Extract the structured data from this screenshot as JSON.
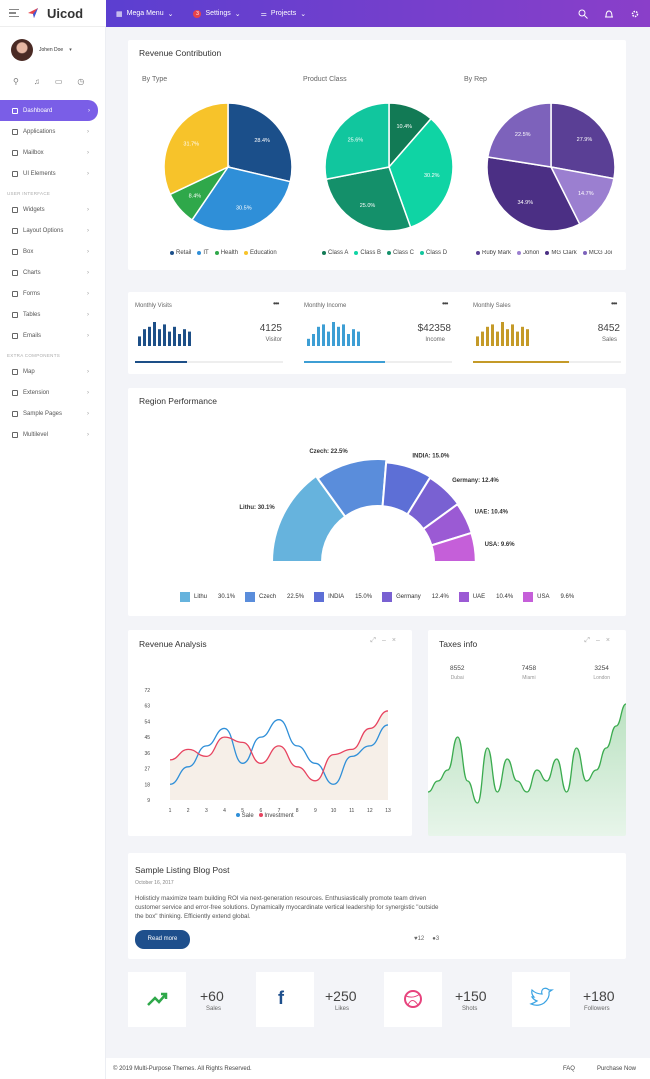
{
  "brand": {
    "name": "Uicod"
  },
  "topnav": {
    "mega": "Mega Menu",
    "settings": "Settings",
    "settings_badge": "3",
    "projects": "Projects"
  },
  "user": {
    "name": "Johen Doe"
  },
  "sidebar": {
    "items": [
      {
        "label": "Dashboard",
        "active": true
      },
      {
        "label": "Applications"
      },
      {
        "label": "Mailbox"
      },
      {
        "label": "UI Elements"
      }
    ],
    "section1": "USER INTERFACE",
    "items2": [
      {
        "label": "Widgets"
      },
      {
        "label": "Layout Options"
      },
      {
        "label": "Box"
      },
      {
        "label": "Charts"
      },
      {
        "label": "Forms"
      },
      {
        "label": "Tables"
      },
      {
        "label": "Emails"
      }
    ],
    "section2": "EXTRA COMPONENTS",
    "items3": [
      {
        "label": "Map"
      },
      {
        "label": "Extension"
      },
      {
        "label": "Sample Pages"
      },
      {
        "label": "Multilevel"
      }
    ]
  },
  "revenue": {
    "title": "Revenue Contribution",
    "by_type": "By Type",
    "product_class": "Product Class",
    "by_rep": "By Rep"
  },
  "chart_data": [
    {
      "type": "pie",
      "title": "By Type",
      "categories": [
        "Retail",
        "IT",
        "Health",
        "Education"
      ],
      "values": [
        28.4,
        30.5,
        8.4,
        31.7
      ],
      "colors": [
        "#1b4f8a",
        "#2f8fd8",
        "#2fa84a",
        "#f7c32a"
      ]
    },
    {
      "type": "pie",
      "title": "Product Class",
      "categories": [
        "Class A",
        "Class B",
        "Class C",
        "Class D"
      ],
      "values": [
        10.4,
        30.2,
        25.0,
        25.6
      ],
      "colors": [
        "#127a55",
        "#0fd4a4",
        "#14906a",
        "#11c69e"
      ]
    },
    {
      "type": "pie",
      "title": "By Rep",
      "categories": [
        "Ruby Mark",
        "Johon",
        "MG Clark",
        "MCG Joi"
      ],
      "values": [
        27.9,
        14.7,
        34.9,
        22.5
      ],
      "colors": [
        "#5a3f95",
        "#9b7fd0",
        "#4b2f84",
        "#7d62bb"
      ]
    },
    {
      "type": "bar",
      "title": "Monthly Visits",
      "values": [
        4,
        7,
        8,
        10,
        7,
        9,
        6,
        8,
        5,
        7,
        6
      ]
    },
    {
      "type": "bar",
      "title": "Monthly Income",
      "values": [
        3,
        5,
        8,
        9,
        6,
        10,
        8,
        9,
        5,
        7,
        6
      ]
    },
    {
      "type": "bar",
      "title": "Monthly Sales",
      "values": [
        4,
        6,
        8,
        9,
        6,
        10,
        7,
        9,
        6,
        8,
        7
      ]
    },
    {
      "type": "pie",
      "title": "Region Performance",
      "categories": [
        "Lithu",
        "Czech",
        "INDIA",
        "Germany",
        "UAE",
        "USA"
      ],
      "values": [
        30.1,
        22.5,
        15.0,
        12.4,
        10.4,
        9.6
      ],
      "colors": [
        "#66b3dd",
        "#5a8ddb",
        "#5d6fd6",
        "#7961d2",
        "#9b5ad4",
        "#c55fd9"
      ]
    },
    {
      "type": "line",
      "title": "Revenue Analysis",
      "x": [
        1,
        2,
        3,
        4,
        5,
        6,
        7,
        8,
        9,
        10,
        11,
        12,
        13
      ],
      "ylim": [
        9,
        72
      ],
      "yticks": [
        9,
        18,
        27,
        36,
        45,
        54,
        63,
        72
      ],
      "series": [
        {
          "name": "Sale",
          "values": [
            18,
            28,
            40,
            50,
            30,
            45,
            55,
            40,
            30,
            18,
            34,
            40,
            52
          ]
        },
        {
          "name": "Investment",
          "values": [
            32,
            38,
            34,
            45,
            42,
            30,
            40,
            28,
            20,
            35,
            38,
            50,
            60
          ]
        }
      ]
    },
    {
      "type": "area",
      "title": "Taxes Info",
      "values": [
        2,
        3,
        4,
        7,
        3,
        1,
        6,
        2,
        5,
        3,
        2,
        4,
        3,
        5,
        2,
        6,
        3,
        4,
        6,
        8,
        10
      ]
    }
  ],
  "stats": {
    "visits": {
      "title": "Monthly Visits",
      "value": "4125",
      "label": "Visitor",
      "progress": 0.35,
      "color": "#1d4f87"
    },
    "income": {
      "title": "Monthly Income",
      "value": "$42358",
      "label": "Income",
      "progress": 0.55,
      "color": "#3d9ed4"
    },
    "sales": {
      "title": "Monthly Sales",
      "value": "8452",
      "label": "Sales",
      "progress": 0.65,
      "color": "#c49a28"
    }
  },
  "region": {
    "title": "Region Performance",
    "labels": [
      "Lithu: 30.1%",
      "Czech: 22.5%",
      "INDIA: 15.0%",
      "Germany: 12.4%",
      "UAE: 10.4%",
      "USA: 9.6%"
    ],
    "legend": [
      {
        "name": "Lithu",
        "pct": "30.1%"
      },
      {
        "name": "Czech",
        "pct": "22.5%"
      },
      {
        "name": "INDIA",
        "pct": "15.0%"
      },
      {
        "name": "Germany",
        "pct": "12.4%"
      },
      {
        "name": "UAE",
        "pct": "10.4%"
      },
      {
        "name": "USA",
        "pct": "9.6%"
      }
    ]
  },
  "analysis": {
    "title": "Revenue Analysis",
    "legend_sale": "Sale",
    "legend_invest": "Investment"
  },
  "taxes": {
    "title": "Taxes info",
    "items": [
      {
        "value": "8552",
        "city": "Dubai"
      },
      {
        "value": "7458",
        "city": "Miami"
      },
      {
        "value": "3254",
        "city": "London"
      }
    ]
  },
  "blog": {
    "title": "Sample Listing Blog Post",
    "date": "October 16, 2017",
    "text": "Holisticly maximize team building ROI via next-generation resources. Enthusiastically promote team driven customer service and error-free solutions. Dynamically myocardinate vertical leadership for synergistic \"outside the box\" thinking. Efficiently extend global.",
    "button": "Read more",
    "likes": "12",
    "comments": "3"
  },
  "social": [
    {
      "value": "+60",
      "label": "Sales"
    },
    {
      "value": "+250",
      "label": "Likes"
    },
    {
      "value": "+150",
      "label": "Shots"
    },
    {
      "value": "+180",
      "label": "Followers"
    }
  ],
  "footer": {
    "copyright": "© 2019 Multi-Purpose Themes. All Rights Reserved.",
    "faq": "FAQ",
    "purchase": "Purchase Now"
  }
}
